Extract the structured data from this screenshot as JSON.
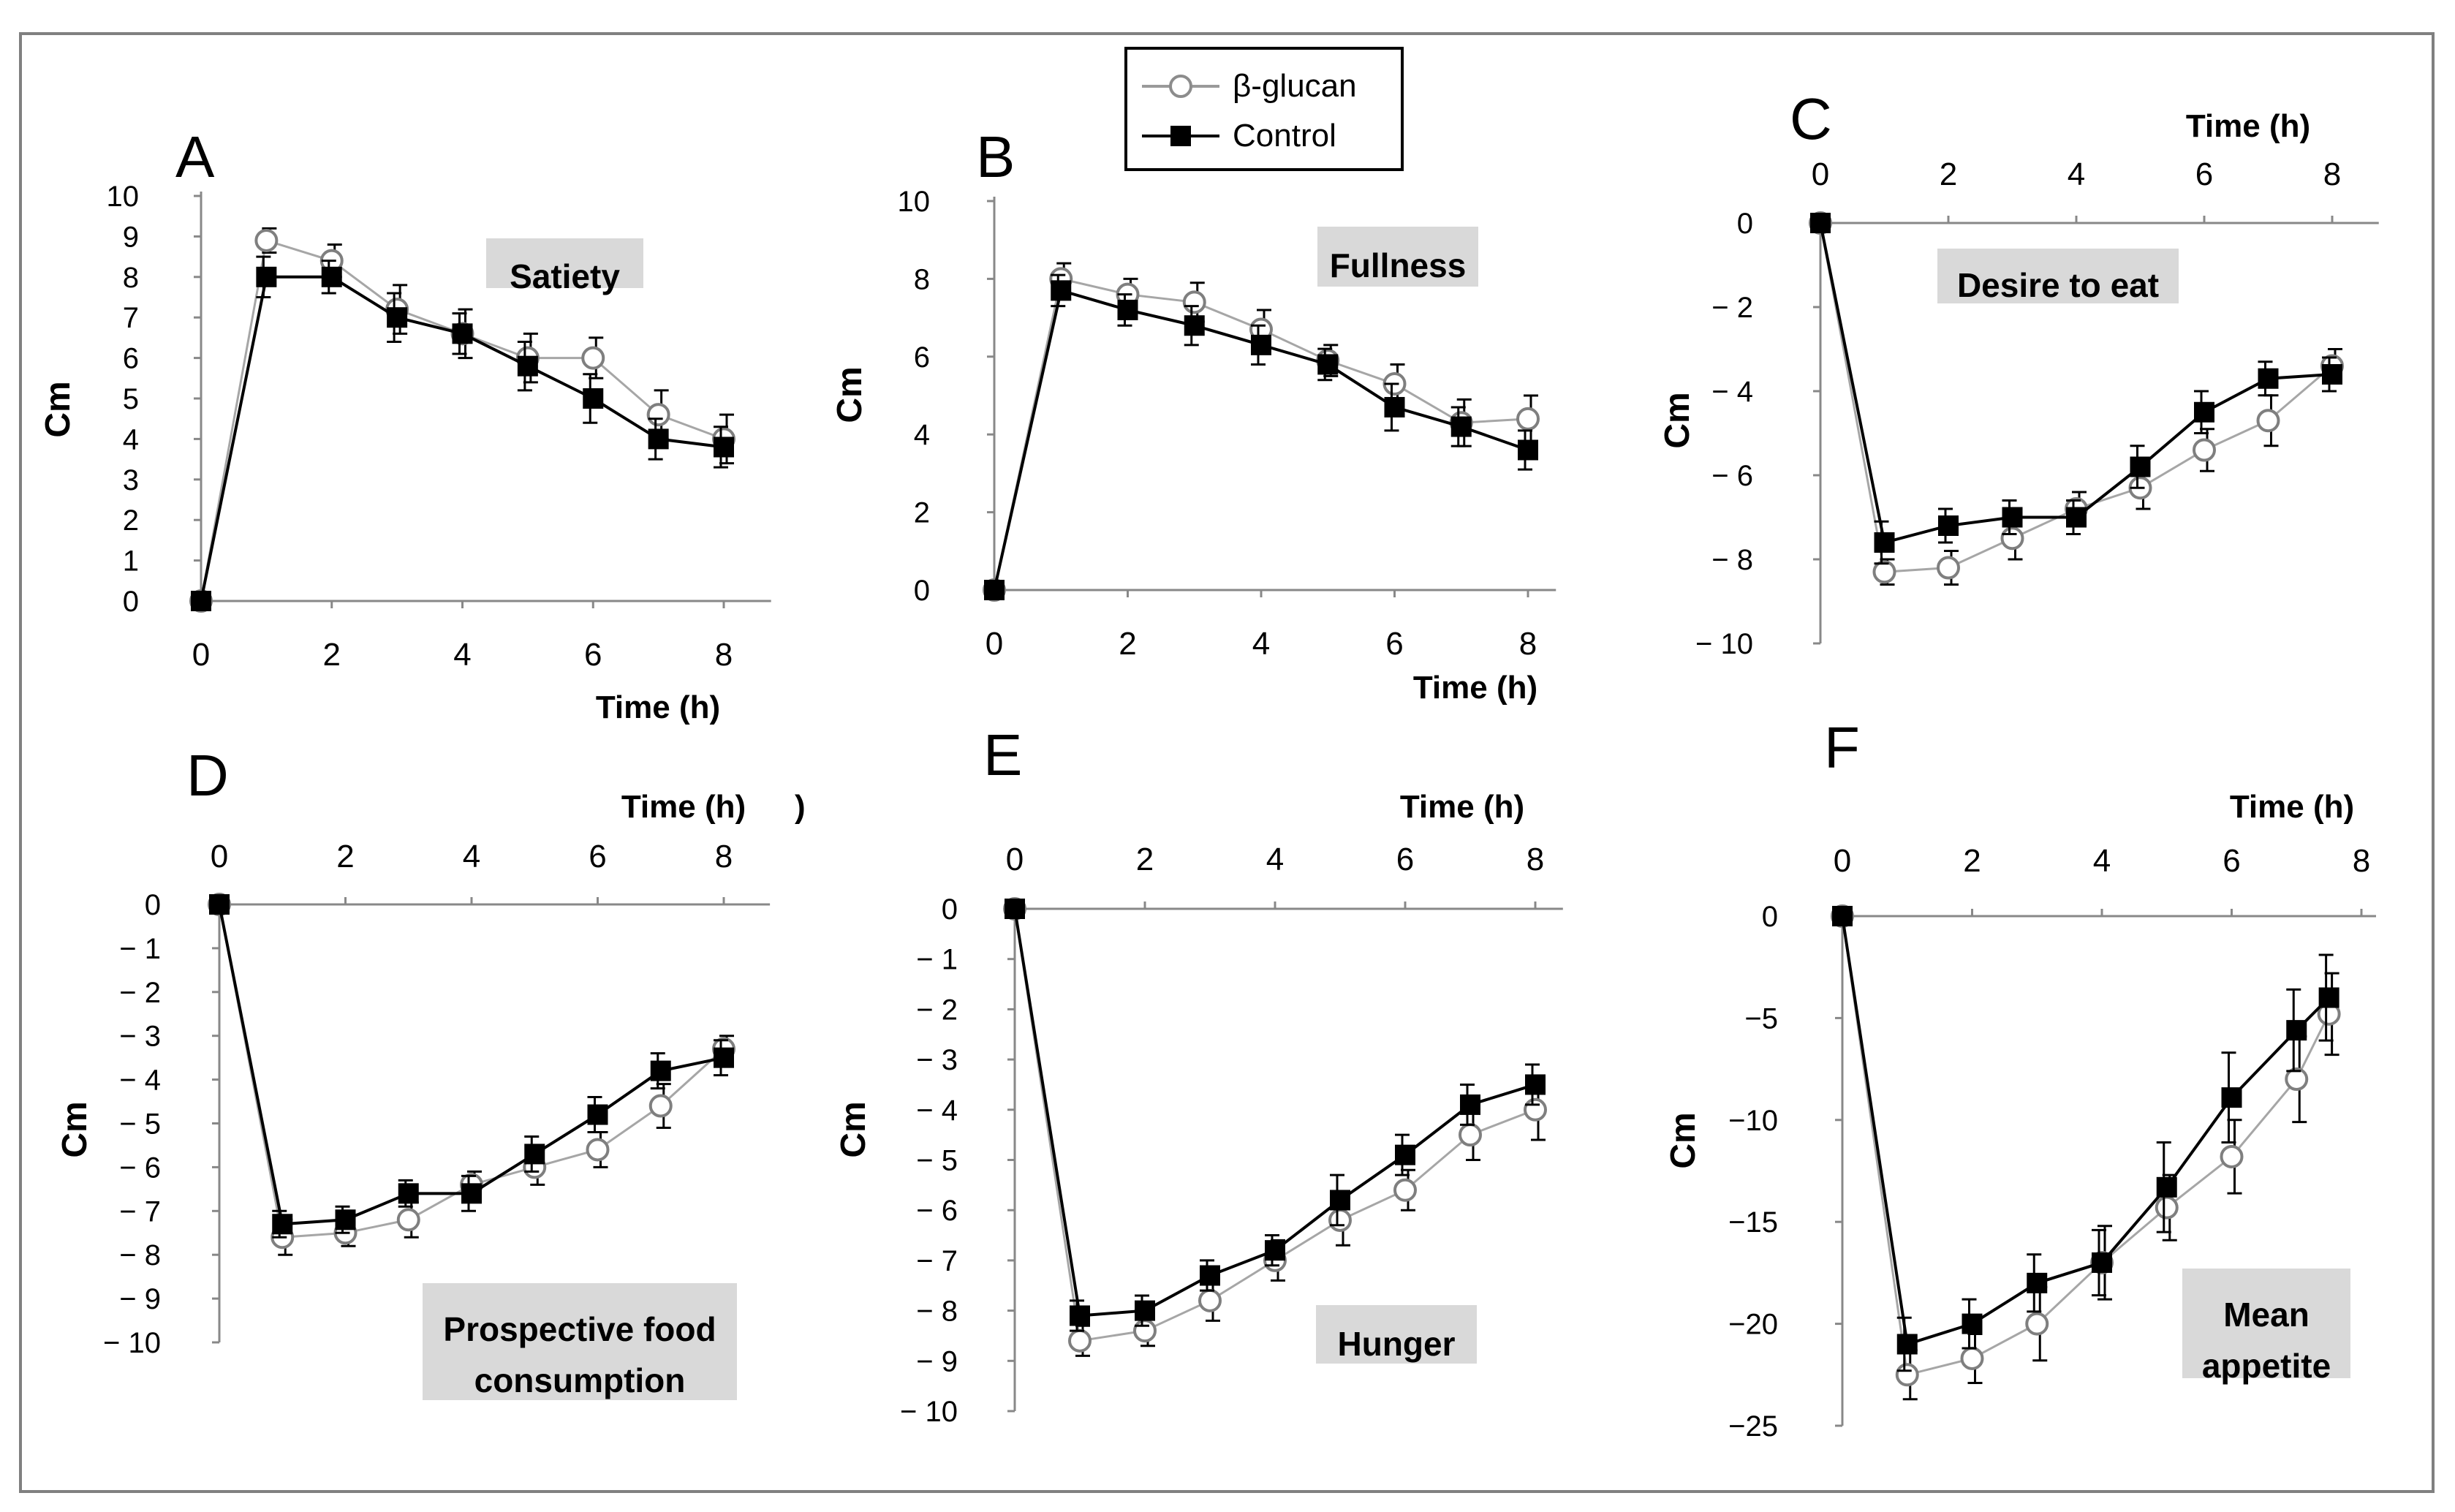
{
  "figure": {
    "legend": {
      "series": [
        {
          "name": "β-glucan",
          "marker": "open-circle",
          "color": "#9a9a9a"
        },
        {
          "name": "Control",
          "marker": "filled-square",
          "color": "#000000"
        }
      ]
    },
    "ylabel": "Cm",
    "xlabel": "Time (h)"
  },
  "chart_data": [
    {
      "panel": "A",
      "type": "line",
      "title": "Satiety",
      "xlabel": "Time (h)",
      "ylabel": "Cm",
      "xlim": [
        0,
        8.5
      ],
      "ylim": [
        0,
        10
      ],
      "xticks": [
        0,
        2,
        4,
        6,
        8
      ],
      "yticks": [
        0,
        1,
        2,
        3,
        4,
        5,
        6,
        7,
        8,
        9,
        10
      ],
      "x": [
        0,
        1,
        2,
        3,
        4,
        5,
        6,
        7,
        8
      ],
      "series": [
        {
          "name": "β-glucan",
          "values": [
            0,
            8.9,
            8.4,
            7.2,
            6.6,
            6.0,
            6.0,
            4.6,
            4.0
          ],
          "errors": [
            0,
            0.3,
            0.4,
            0.6,
            0.6,
            0.6,
            0.5,
            0.6,
            0.6
          ]
        },
        {
          "name": "Control",
          "values": [
            0,
            8.0,
            8.0,
            7.0,
            6.6,
            5.8,
            5.0,
            4.0,
            3.8
          ],
          "errors": [
            0,
            0.5,
            0.4,
            0.6,
            0.5,
            0.6,
            0.6,
            0.5,
            0.5
          ]
        }
      ]
    },
    {
      "panel": "B",
      "type": "line",
      "title": "Fullness",
      "xlabel": "Time (h)",
      "ylabel": "Cm",
      "xlim": [
        0,
        8.2
      ],
      "ylim": [
        0,
        10
      ],
      "xticks": [
        0,
        2,
        4,
        6,
        8
      ],
      "yticks": [
        0,
        2,
        4,
        6,
        8,
        10
      ],
      "x": [
        0,
        1,
        2,
        3,
        4,
        5,
        6,
        7,
        8
      ],
      "series": [
        {
          "name": "β-glucan",
          "values": [
            0,
            8.0,
            7.6,
            7.4,
            6.7,
            5.9,
            5.3,
            4.3,
            4.4
          ],
          "errors": [
            0,
            0.4,
            0.4,
            0.5,
            0.5,
            0.4,
            0.5,
            0.6,
            0.6
          ]
        },
        {
          "name": "Control",
          "values": [
            0,
            7.7,
            7.2,
            6.8,
            6.3,
            5.8,
            4.7,
            4.2,
            3.6
          ],
          "errors": [
            0,
            0.4,
            0.4,
            0.5,
            0.5,
            0.4,
            0.6,
            0.5,
            0.5
          ]
        }
      ]
    },
    {
      "panel": "C",
      "type": "line",
      "title": "Desire to eat",
      "xlabel": "Time (h)",
      "ylabel": "Cm",
      "xlim": [
        0,
        8.5
      ],
      "ylim": [
        -10,
        0
      ],
      "xticks": [
        0,
        2,
        4,
        6,
        8
      ],
      "yticks": [
        0,
        -2,
        -4,
        -6,
        -8,
        -10
      ],
      "ytick_labels": [
        "0",
        "− 2",
        "− 4",
        "− 6",
        "− 8",
        "− 10"
      ],
      "x": [
        0,
        1,
        2,
        3,
        4,
        5,
        6,
        7,
        8
      ],
      "series": [
        {
          "name": "β-glucan",
          "values": [
            0,
            -8.3,
            -8.2,
            -7.5,
            -6.8,
            -6.3,
            -5.4,
            -4.7,
            -3.4
          ],
          "errors": [
            0,
            0.3,
            0.4,
            0.5,
            0.4,
            0.5,
            0.5,
            0.6,
            0.4
          ]
        },
        {
          "name": "Control",
          "values": [
            0,
            -7.6,
            -7.2,
            -7.0,
            -7.0,
            -5.8,
            -4.5,
            -3.7,
            -3.6
          ],
          "errors": [
            0,
            0.5,
            0.4,
            0.4,
            0.4,
            0.5,
            0.5,
            0.4,
            0.4
          ]
        }
      ]
    },
    {
      "panel": "D",
      "type": "line",
      "title": "Prospective food consumption",
      "title_lines": [
        "Prospective food",
        "consumption"
      ],
      "xlabel": "Time (h)",
      "xlabel_extra": ")",
      "ylabel": "Cm",
      "xlim": [
        0,
        8.5
      ],
      "ylim": [
        -10,
        0
      ],
      "xticks": [
        0,
        2,
        4,
        6,
        8
      ],
      "yticks": [
        0,
        -1,
        -2,
        -3,
        -4,
        -5,
        -6,
        -7,
        -8,
        -9,
        -10
      ],
      "ytick_labels": [
        "0",
        "− 1",
        "− 2",
        "− 3",
        "− 4",
        "− 5",
        "− 6",
        "− 7",
        "− 8",
        "− 9",
        "− 10"
      ],
      "x": [
        0,
        1,
        2,
        3,
        4,
        5,
        6,
        7,
        8
      ],
      "series": [
        {
          "name": "β-glucan",
          "values": [
            0,
            -7.6,
            -7.5,
            -7.2,
            -6.4,
            -6.0,
            -5.6,
            -4.6,
            -3.3
          ],
          "errors": [
            0,
            0.4,
            0.3,
            0.4,
            0.3,
            0.4,
            0.4,
            0.5,
            0.3
          ]
        },
        {
          "name": "Control",
          "values": [
            0,
            -7.3,
            -7.2,
            -6.6,
            -6.6,
            -5.7,
            -4.8,
            -3.8,
            -3.5
          ],
          "errors": [
            0,
            0.3,
            0.3,
            0.3,
            0.4,
            0.4,
            0.4,
            0.4,
            0.4
          ]
        }
      ]
    },
    {
      "panel": "E",
      "type": "line",
      "title": "Hunger",
      "xlabel": "Time (h)",
      "ylabel": "Cm",
      "xlim": [
        0,
        8.2
      ],
      "ylim": [
        -10,
        0
      ],
      "xticks": [
        0,
        2,
        4,
        6,
        8
      ],
      "yticks": [
        0,
        -1,
        -2,
        -3,
        -4,
        -5,
        -6,
        -7,
        -8,
        -9,
        -10
      ],
      "ytick_labels": [
        "0",
        "− 1",
        "− 2",
        "− 3",
        "− 4",
        "− 5",
        "− 6",
        "− 7",
        "− 8",
        "− 9",
        "− 10"
      ],
      "x": [
        0,
        1,
        2,
        3,
        4,
        5,
        6,
        7,
        8
      ],
      "series": [
        {
          "name": "β-glucan",
          "values": [
            0,
            -8.6,
            -8.4,
            -7.8,
            -7.0,
            -6.2,
            -5.6,
            -4.5,
            -4.0
          ],
          "errors": [
            0,
            0.3,
            0.3,
            0.4,
            0.4,
            0.5,
            0.4,
            0.5,
            0.6
          ]
        },
        {
          "name": "Control",
          "values": [
            0,
            -8.1,
            -8.0,
            -7.3,
            -6.8,
            -5.8,
            -4.9,
            -3.9,
            -3.5
          ],
          "errors": [
            0,
            0.3,
            0.3,
            0.3,
            0.3,
            0.5,
            0.4,
            0.4,
            0.4
          ]
        }
      ]
    },
    {
      "panel": "F",
      "type": "line",
      "title": "Mean appetite",
      "title_lines": [
        "Mean",
        "appetite"
      ],
      "xlabel": "Time (h)",
      "ylabel": "Cm",
      "xlim": [
        0,
        8
      ],
      "ylim": [
        -25,
        0
      ],
      "xticks": [
        0,
        2,
        4,
        6,
        8
      ],
      "yticks": [
        0,
        -5,
        -10,
        -15,
        -20,
        -25
      ],
      "ytick_labels": [
        "0",
        "−5",
        "−10",
        "−15",
        "−20",
        "−25"
      ],
      "x": [
        0,
        1,
        2,
        3,
        4,
        5,
        6,
        7,
        7.5
      ],
      "series": [
        {
          "name": "β-glucan",
          "values": [
            0,
            -22.5,
            -21.7,
            -20.0,
            -17.0,
            -14.3,
            -11.8,
            -8.0,
            -4.8
          ],
          "errors": [
            0,
            1.2,
            1.2,
            1.8,
            1.8,
            1.6,
            1.8,
            2.1,
            2.0
          ]
        },
        {
          "name": "Control",
          "values": [
            0,
            -21.0,
            -20.0,
            -18.0,
            -17.0,
            -13.3,
            -8.9,
            -5.6,
            -4.0
          ],
          "errors": [
            0,
            1.3,
            1.2,
            1.4,
            1.6,
            2.2,
            2.2,
            2.0,
            2.1
          ]
        }
      ]
    }
  ]
}
